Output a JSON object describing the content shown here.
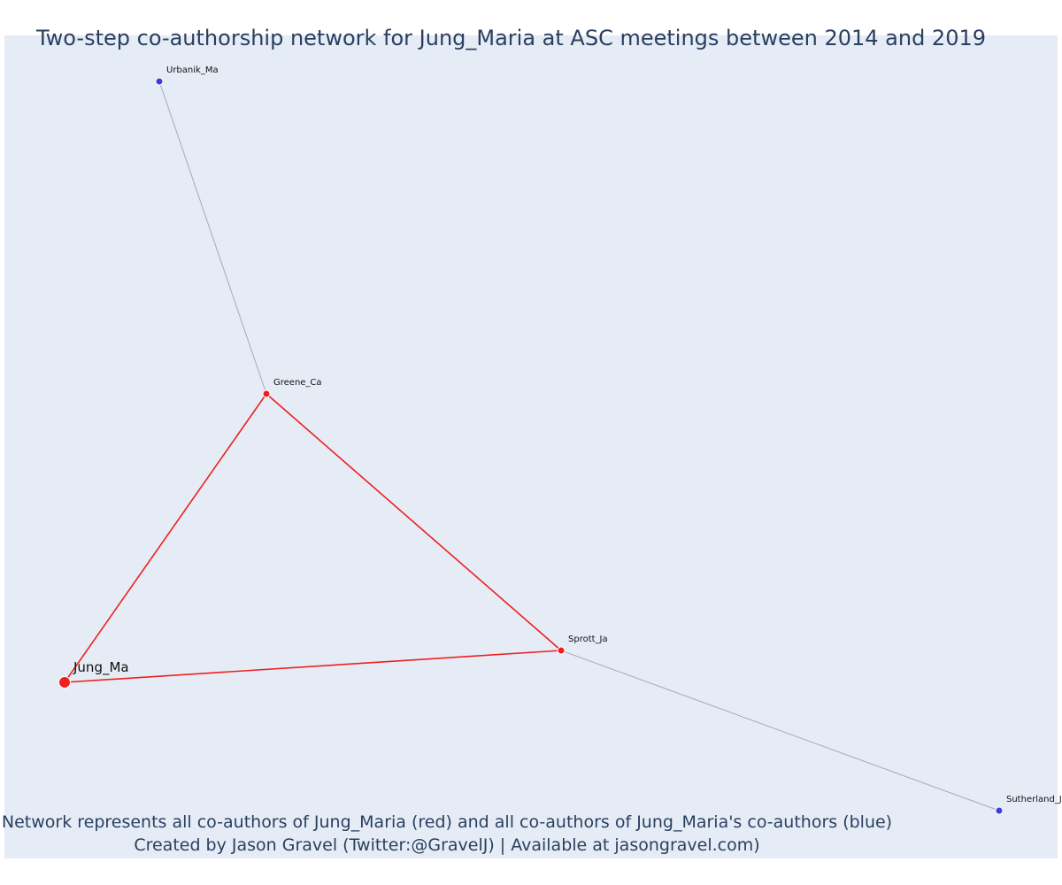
{
  "title": "Two-step co-authorship network for Jung_Maria at ASC meetings between 2014 and 2019",
  "caption": {
    "line1": "Network represents all co-authors of Jung_Maria (red) and all co-authors of Jung_Maria's co-authors (blue)",
    "line2": "Created by Jason Gravel (Twitter:@GravelJ) | Available at jasongravel.com)"
  },
  "colors": {
    "background": "#e5ecf6",
    "coauthor": "#ef1f1f",
    "second_step": "#3c3ce0",
    "secondary_edge": "#a8a8b8",
    "text": "#2a3f5f"
  },
  "nodes": [
    {
      "id": "Jung_Ma",
      "label": "Jung_Ma",
      "group": "focal"
    },
    {
      "id": "Greene_Ca",
      "label": "Greene_Ca",
      "group": "coauthor"
    },
    {
      "id": "Sprott_Ja",
      "label": "Sprott_Ja",
      "group": "coauthor"
    },
    {
      "id": "Urbanik_Ma",
      "label": "Urbanik_Ma",
      "group": "second_step"
    },
    {
      "id": "Sutherland_J",
      "label": "Sutherland_J",
      "group": "second_step"
    }
  ],
  "edges": [
    {
      "source": "Jung_Ma",
      "target": "Greene_Ca",
      "type": "primary"
    },
    {
      "source": "Jung_Ma",
      "target": "Sprott_Ja",
      "type": "primary"
    },
    {
      "source": "Greene_Ca",
      "target": "Sprott_Ja",
      "type": "primary"
    },
    {
      "source": "Greene_Ca",
      "target": "Urbanik_Ma",
      "type": "secondary"
    },
    {
      "source": "Sprott_Ja",
      "target": "Sutherland_J",
      "type": "secondary"
    }
  ]
}
